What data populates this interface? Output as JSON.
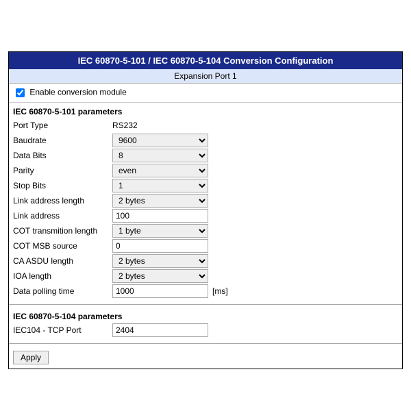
{
  "header": {
    "title": "IEC 60870-5-101 / IEC 60870-5-104 Conversion Configuration",
    "subtitle": "Expansion Port 1"
  },
  "enable": {
    "label": "Enable conversion module",
    "checked": true
  },
  "section101": {
    "title": "IEC 60870-5-101 parameters",
    "rows": {
      "portType": {
        "label": "Port Type",
        "type": "static",
        "value": "RS232"
      },
      "baudrate": {
        "label": "Baudrate",
        "type": "select",
        "value": "9600"
      },
      "dataBits": {
        "label": "Data Bits",
        "type": "select",
        "value": "8"
      },
      "parity": {
        "label": "Parity",
        "type": "select",
        "value": "even"
      },
      "stopBits": {
        "label": "Stop Bits",
        "type": "select",
        "value": "1"
      },
      "linkAddrLen": {
        "label": "Link address length",
        "type": "select",
        "value": "2 bytes"
      },
      "linkAddr": {
        "label": "Link address",
        "type": "text",
        "value": "100"
      },
      "cotLen": {
        "label": "COT transmition length",
        "type": "select",
        "value": "1 byte"
      },
      "cotMsb": {
        "label": "COT MSB source",
        "type": "text",
        "value": "0"
      },
      "caAsdu": {
        "label": "CA ASDU length",
        "type": "select",
        "value": "2 bytes"
      },
      "ioaLen": {
        "label": "IOA length",
        "type": "select",
        "value": "2 bytes"
      },
      "polling": {
        "label": "Data polling time",
        "type": "text",
        "value": "1000",
        "unit": "[ms]"
      }
    }
  },
  "section104": {
    "title": "IEC 60870-5-104 parameters",
    "rows": {
      "tcpPort": {
        "label": "IEC104 - TCP Port",
        "type": "text",
        "value": "2404"
      }
    }
  },
  "apply": {
    "label": "Apply"
  },
  "style": {
    "titleBg": "#1a2a8a",
    "titleFg": "#ffffff",
    "subBg": "#dce6fa",
    "border": "#000000",
    "rowDivider": "#aaaaaa",
    "fontSize": 12
  }
}
